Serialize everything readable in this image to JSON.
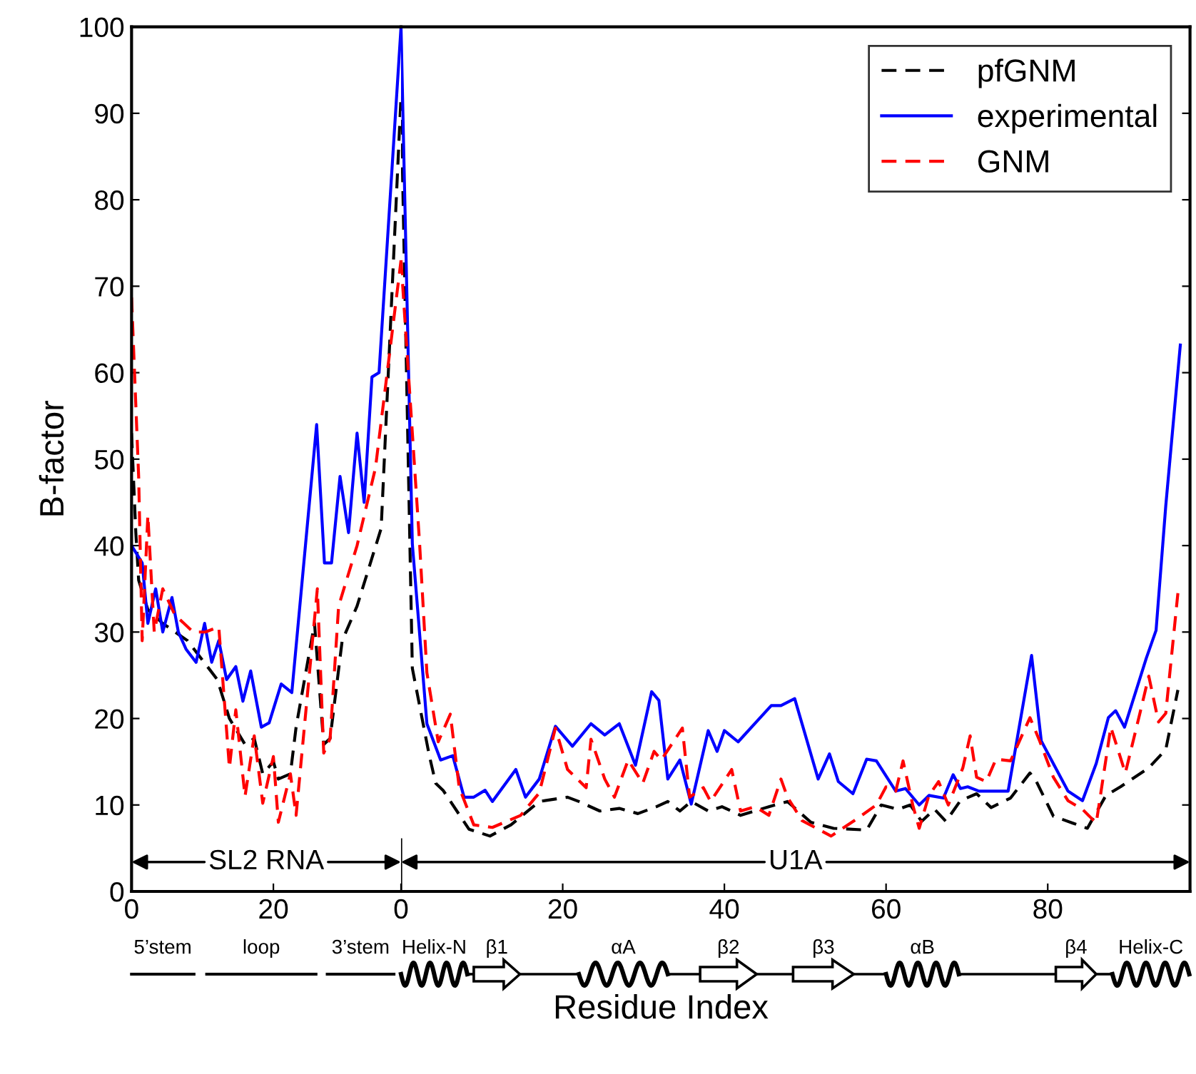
{
  "chart_data": [
    {
      "type": "line",
      "ylabel": "B-factor",
      "xlim": [
        0,
        38
      ],
      "xticks": [
        0,
        20
      ],
      "ylim": [
        0,
        100
      ],
      "yticks": [
        0,
        10,
        20,
        30,
        40,
        50,
        60,
        70,
        80,
        90,
        100
      ],
      "grid": false,
      "legend": false,
      "annotations": [
        "SL2 RNA",
        "5’stem",
        "loop",
        "3’stem"
      ],
      "series": [
        {
          "color": "#000000",
          "line_style": "dashed",
          "x": [
            0,
            0.6,
            1,
            2.3,
            4.4,
            7.9,
            12.1,
            13.8,
            16,
            17.3,
            18.5,
            20,
            20.7,
            22.4,
            23.2,
            25.8,
            27.1,
            28,
            29.7,
            31.8,
            35.2,
            38
          ],
          "values": [
            53,
            41.5,
            36,
            32.6,
            31,
            29,
            24.5,
            20,
            17,
            17.7,
            13.6,
            15,
            13,
            13.6,
            19,
            31,
            17,
            17.7,
            29,
            33,
            42,
            92
          ]
        },
        {
          "color": "#0000ff",
          "line_style": "solid",
          "x": [
            0,
            1.5,
            2.3,
            3.4,
            4.4,
            5.7,
            6.6,
            7.7,
            9.1,
            10.3,
            11.3,
            12.3,
            13.4,
            14.7,
            15.7,
            16.8,
            18.3,
            19.4,
            21.1,
            22.6,
            26.1,
            27.2,
            28.2,
            29.4,
            30.6,
            31.8,
            32.8,
            33.9,
            34.9,
            38
          ],
          "values": [
            40,
            38,
            31,
            35,
            30,
            34,
            30,
            28,
            26.5,
            31,
            26.5,
            29,
            24.5,
            26,
            22,
            25.5,
            19,
            19.5,
            24,
            23,
            54,
            38,
            38,
            48,
            41.5,
            53,
            45,
            59.5,
            60,
            100
          ]
        },
        {
          "color": "#ff0000",
          "line_style": "dashed",
          "x": [
            0,
            1,
            1.5,
            2.3,
            3.2,
            4.4,
            6.1,
            8.7,
            10.4,
            12.3,
            13.8,
            14.7,
            16,
            17.3,
            18.5,
            20,
            20.7,
            22.4,
            23.2,
            26.2,
            27.1,
            28,
            29.2,
            31.8,
            34.4,
            38
          ],
          "values": [
            68.7,
            48,
            29,
            43.5,
            30,
            35,
            32,
            30,
            30,
            30.6,
            14.3,
            21,
            11,
            18,
            10.2,
            15.6,
            8,
            13.6,
            8.8,
            35,
            16,
            17.7,
            33,
            40,
            49,
            73
          ]
        }
      ]
    },
    {
      "type": "line",
      "xlabel": "Residue Index",
      "xlim": [
        0,
        97.6
      ],
      "xticks": [
        0,
        20,
        40,
        60,
        80
      ],
      "ylim": [
        0,
        100
      ],
      "yticks": [
        0,
        10,
        20,
        30,
        40,
        50,
        60,
        70,
        80,
        90,
        100
      ],
      "grid": false,
      "legend": "top right",
      "tick_labels": "x",
      "annotations": [
        "U1A",
        "Helix-N",
        "β1",
        "αA",
        "β2",
        "β3",
        "αB",
        "β4",
        "Helix-C"
      ],
      "series": [
        {
          "name": "pfGNM",
          "color": "#000000",
          "line_style": "dashed",
          "x": [
            0,
            1.4,
            3.5,
            4.3,
            5.2,
            8.4,
            11,
            13.6,
            17.1,
            20.6,
            22,
            24.6,
            27,
            29.3,
            31.6,
            33,
            34.5,
            35.9,
            38,
            39.7,
            42,
            45.5,
            47.8,
            50.7,
            53.5,
            57.6,
            59.4,
            61.5,
            63,
            64.4,
            66,
            67.4,
            69.2,
            71.2,
            73,
            75.4,
            77.8,
            78.6,
            80.7,
            83.1,
            84.9,
            87.2,
            89,
            92.5,
            94.6,
            96.1
          ],
          "values": [
            92,
            25.8,
            15.7,
            12.5,
            11.7,
            7.2,
            6.4,
            7.7,
            10.4,
            10.9,
            10.4,
            9.3,
            9.6,
            9,
            9.8,
            10.4,
            9.3,
            10.4,
            9.3,
            9.8,
            8.8,
            9.8,
            10.4,
            8,
            7.3,
            7.1,
            10,
            9.5,
            10,
            8.1,
            9.5,
            8.1,
            10.5,
            11.3,
            9.7,
            10.8,
            13.7,
            12.7,
            8.7,
            7.9,
            7.3,
            11.1,
            12.1,
            14.3,
            16.4,
            23.3
          ]
        },
        {
          "name": "experimental",
          "color": "#0000ff",
          "line_style": "solid",
          "x": [
            0,
            1.4,
            3.2,
            4.9,
            6.4,
            7.8,
            9,
            10.4,
            11.3,
            14.2,
            15.4,
            17.1,
            19.1,
            21.2,
            23.5,
            25.2,
            27,
            29,
            31,
            31.9,
            33,
            34.5,
            35.9,
            38,
            39.1,
            40,
            41.7,
            45.8,
            47,
            48.7,
            51.6,
            53,
            54.1,
            55.9,
            57.6,
            58.8,
            61.2,
            62.4,
            64.1,
            65.3,
            67.1,
            68.3,
            69.2,
            70.1,
            71.5,
            75.1,
            78,
            79.2,
            82.5,
            84.3,
            86,
            87.5,
            88.4,
            89.5,
            92.2,
            93.4,
            94.6,
            96.4
          ],
          "values": [
            100,
            40.2,
            19.4,
            15.2,
            15.7,
            10.9,
            10.9,
            11.7,
            10.4,
            14.1,
            10.9,
            13,
            19.1,
            16.8,
            19.4,
            18.1,
            19.4,
            14.6,
            23.1,
            22.1,
            13,
            15.2,
            10.1,
            18.6,
            16.2,
            18.6,
            17.3,
            21.5,
            21.5,
            22.3,
            13,
            15.9,
            12.7,
            11.3,
            15.3,
            15.1,
            11.6,
            11.9,
            10,
            11.1,
            10.8,
            13.5,
            11.9,
            12.1,
            11.6,
            11.6,
            27.3,
            17.4,
            11.6,
            10.5,
            14.8,
            20.1,
            20.9,
            19,
            27,
            30.2,
            44.6,
            63.2
          ]
        },
        {
          "name": "GNM",
          "color": "#ff0000",
          "line_style": "dashed",
          "x": [
            0,
            2.3,
            3.2,
            4.6,
            6.1,
            7.2,
            9,
            11.3,
            14.8,
            17.1,
            19.1,
            20.6,
            22.9,
            23.5,
            25.2,
            26.4,
            28.1,
            29.9,
            31.3,
            32.2,
            34.8,
            35.7,
            37.4,
            38.3,
            40.9,
            42,
            43.8,
            45.5,
            47,
            47.8,
            49.6,
            51.6,
            53.2,
            56.4,
            58.8,
            60,
            61.2,
            62.1,
            63.3,
            64.1,
            65.3,
            66.5,
            67.7,
            69.5,
            70.4,
            71.2,
            72.4,
            73.6,
            75.4,
            77.8,
            79,
            80.7,
            82.5,
            84.3,
            86,
            87.8,
            89.6,
            91.4,
            92.5,
            93.7,
            94.6,
            96.1
          ],
          "values": [
            73,
            40.2,
            25.3,
            17.3,
            20.5,
            12,
            7.7,
            7.4,
            8.8,
            11.4,
            18.9,
            14.1,
            12,
            17.6,
            13,
            10.9,
            15.2,
            12.5,
            16.2,
            15.2,
            18.9,
            10.9,
            12,
            10.4,
            14.1,
            9.3,
            9.8,
            8.8,
            13,
            10.9,
            8.2,
            7.2,
            6.4,
            8.4,
            10,
            12.1,
            11.6,
            15.1,
            10,
            7.3,
            11.1,
            12.7,
            10,
            14.3,
            18,
            13.2,
            12.7,
            15.3,
            15.1,
            20.1,
            17.4,
            13.2,
            10.5,
            9.5,
            7.9,
            19,
            13.7,
            20.6,
            24.9,
            19.6,
            20.6,
            34.5
          ]
        }
      ]
    }
  ]
}
